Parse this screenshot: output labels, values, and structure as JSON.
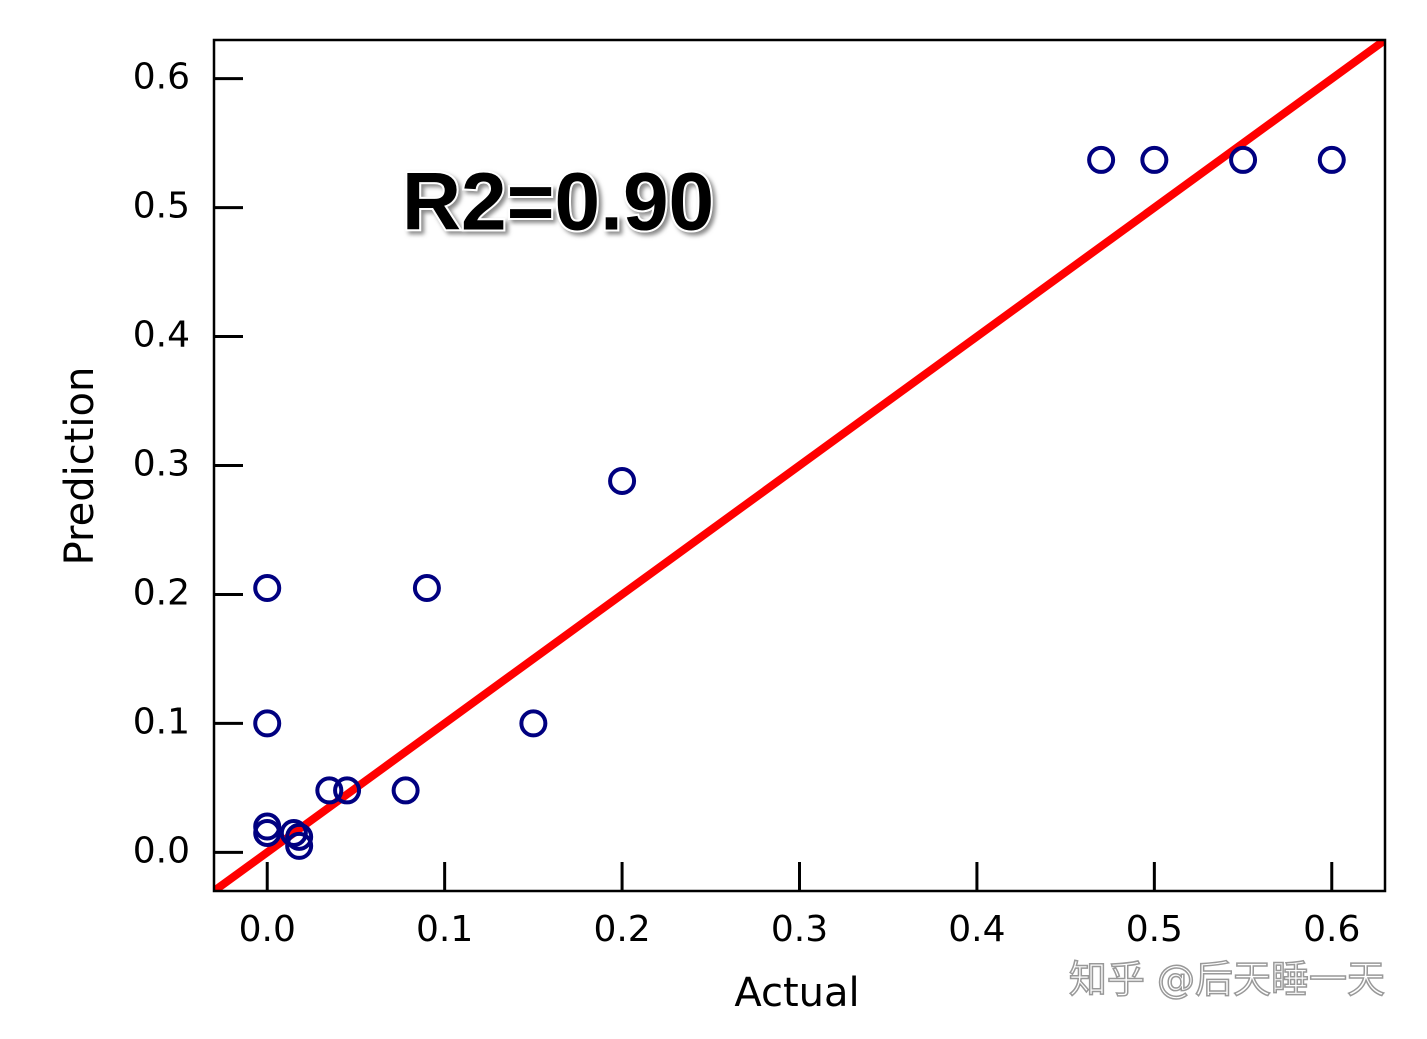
{
  "chart_data": {
    "type": "scatter",
    "x_label": "Actual",
    "y_label": "Prediction",
    "annotation": "R2=0.90",
    "watermark": "知乎 @后天睡一天",
    "xlim": [
      -0.03,
      0.63
    ],
    "ylim": [
      -0.03,
      0.63
    ],
    "xticks": [
      {
        "value": 0,
        "label": "0.0"
      },
      0.1,
      0.2,
      0.3,
      0.4,
      0.5,
      0.6
    ],
    "yticks": [
      {
        "value": 0,
        "label": "0.0"
      },
      0.1,
      0.2,
      0.3,
      0.4,
      0.5,
      0.6
    ],
    "fit_line_color": "#ff0000",
    "series": [
      {
        "color": "#000080",
        "x": [
          0.47,
          0.5,
          0.55,
          0.6,
          0.2,
          0.0,
          0.09,
          0.0,
          0.15,
          0.035,
          0.045,
          0.078,
          0.0,
          0.0,
          0.015,
          0.018,
          0.018
        ],
        "values": [
          0.537,
          0.537,
          0.537,
          0.537,
          0.288,
          0.205,
          0.205,
          0.1,
          0.1,
          0.048,
          0.048,
          0.048,
          0.02,
          0.015,
          0.015,
          0.012,
          0.005
        ]
      }
    ]
  }
}
